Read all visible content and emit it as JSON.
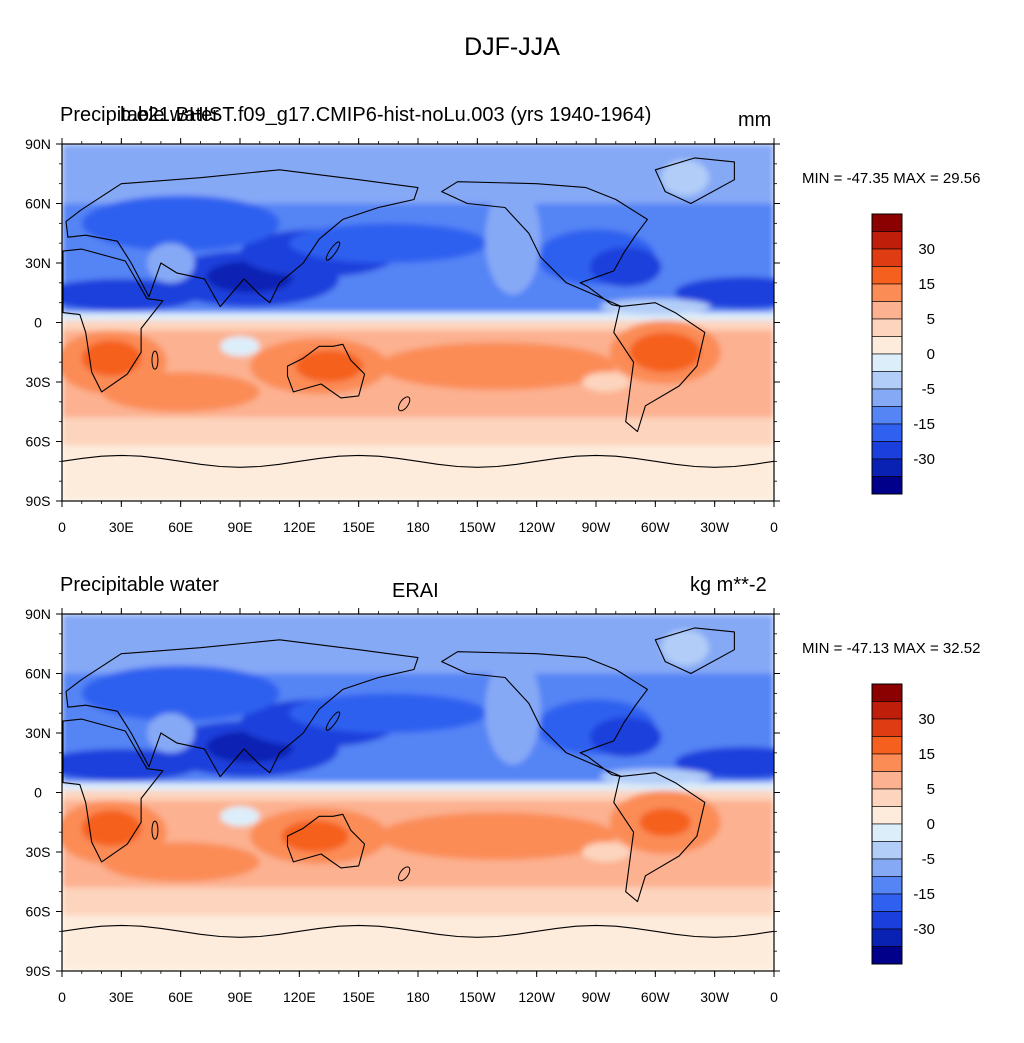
{
  "figure_title": "DJF-JJA",
  "panels": [
    {
      "variable": "Precipitable water",
      "case": "b.e21.BHIST.f09_g17.CMIP6-hist-noLu.003 (yrs 1940-1964)",
      "units": "mm",
      "minmax": "MIN = -47.35 MAX =  29.56"
    },
    {
      "variable": "Precipitable water",
      "case": "ERAI",
      "units": "kg m**-2",
      "minmax": "MIN = -47.13 MAX =  32.52"
    }
  ],
  "lat_labels": [
    "90N",
    "60N",
    "30N",
    "0",
    "30S",
    "60S",
    "90S"
  ],
  "lon_labels": [
    "0",
    "30E",
    "60E",
    "90E",
    "120E",
    "150E",
    "180",
    "150W",
    "120W",
    "90W",
    "60W",
    "30W",
    "0"
  ],
  "colorbar": {
    "labels": [
      "30",
      "15",
      "5",
      "0",
      "-5",
      "-15",
      "-30"
    ],
    "colors": [
      "#8b0000",
      "#bf1e0a",
      "#e03c13",
      "#f5601e",
      "#fb8c56",
      "#fcb190",
      "#fdd4bd",
      "#fdecdc",
      "#ddeefb",
      "#b2cdf8",
      "#86a9f6",
      "#5584f5",
      "#2f60f0",
      "#1a3fdc",
      "#0a22b4",
      "#00008a"
    ]
  },
  "chart_data": [
    {
      "type": "heatmap",
      "title": "b.e21.BHIST.f09_g17.CMIP6-hist-noLu.003 (yrs 1940-1964)",
      "variable": "Precipitable water",
      "units": "mm",
      "season_difference": "DJF-JJA",
      "min": -47.35,
      "max": 29.56,
      "xrange": [
        0,
        360
      ],
      "yrange": [
        -90,
        90
      ],
      "contour_levels": [
        -30,
        -15,
        -5,
        0,
        5,
        15,
        30
      ]
    },
    {
      "type": "heatmap",
      "title": "ERAI",
      "variable": "Precipitable water",
      "units": "kg m**-2",
      "season_difference": "DJF-JJA",
      "min": -47.13,
      "max": 32.52,
      "xrange": [
        0,
        360
      ],
      "yrange": [
        -90,
        90
      ],
      "contour_levels": [
        -30,
        -15,
        -5,
        0,
        5,
        15,
        30
      ]
    }
  ]
}
